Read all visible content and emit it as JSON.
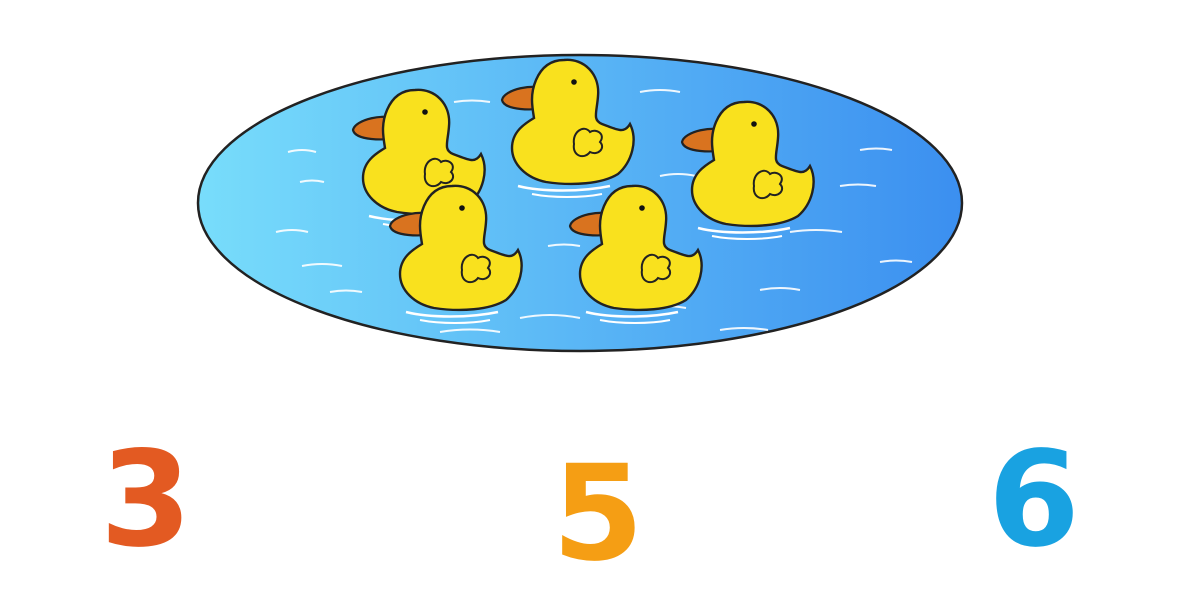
{
  "pond": {
    "duck_count": 5,
    "water_gradient": [
      "#78DDFB",
      "#3B8FF0"
    ],
    "duck_body_color": "#F9E11E",
    "duck_beak_color": "#D9731F"
  },
  "answers": [
    {
      "label": "3",
      "color": "#E35A22"
    },
    {
      "label": "5",
      "color": "#F59E14"
    },
    {
      "label": "6",
      "color": "#19A2E1"
    }
  ]
}
